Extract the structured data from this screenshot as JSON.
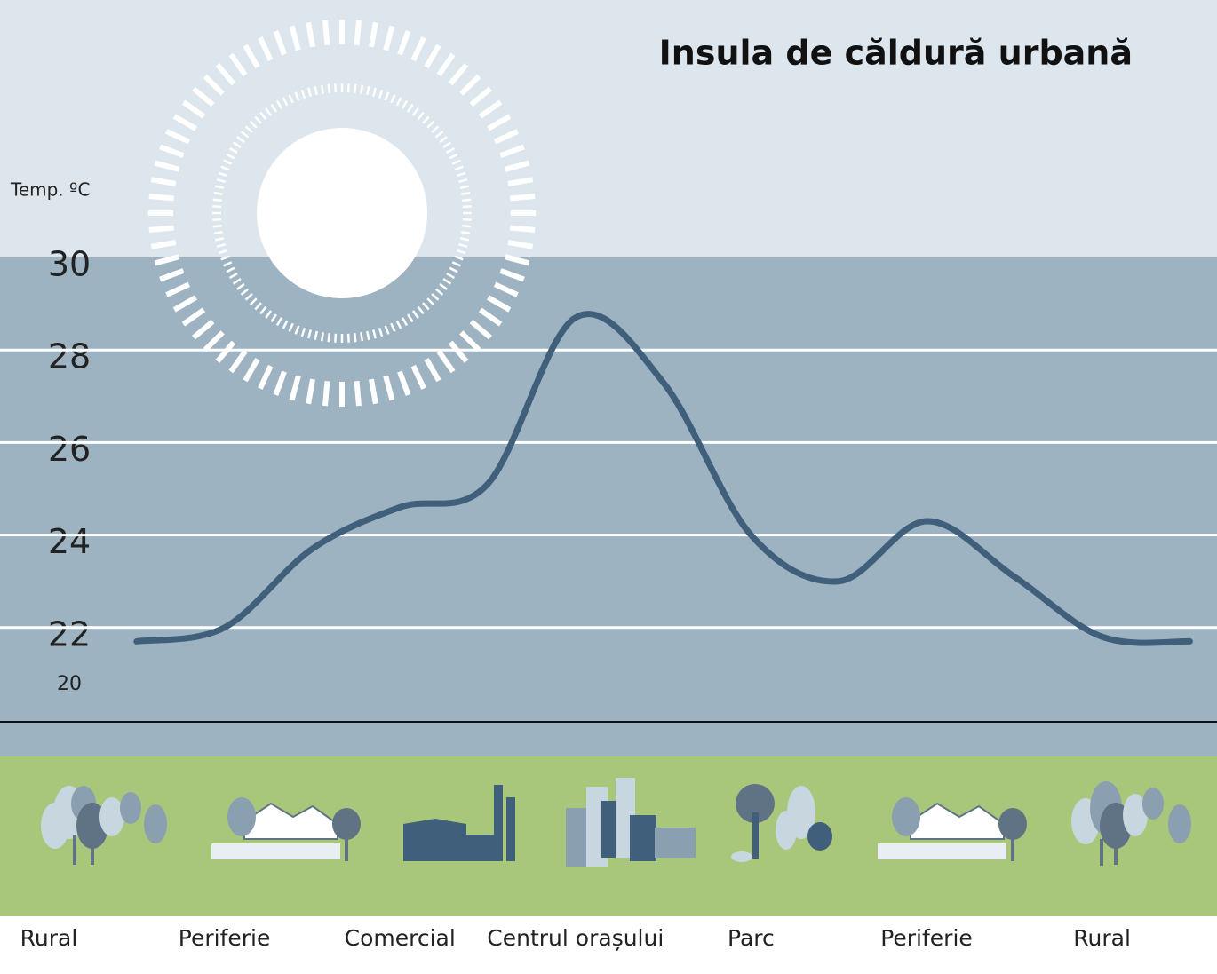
{
  "chart_data": {
    "type": "line",
    "title": "Insula de căldură urbană",
    "y_label": "Temp. ºC",
    "categories": [
      "Rural",
      null,
      "Periferie",
      null,
      "Comercial",
      null,
      "Centrul orașului",
      null,
      "Parc",
      null,
      "Periferie",
      null,
      "Rural",
      null
    ],
    "series": [
      {
        "name": null,
        "color": "#3f5f7b",
        "values": [
          null,
          21.7,
          22.0,
          23.7,
          24.6,
          25.1,
          28.7,
          27.3,
          24.0,
          23.0,
          24.3,
          23.1,
          21.8,
          21.7
        ]
      }
    ],
    "ylim": [
      20,
      30
    ],
    "yticks": [
      20,
      22,
      24,
      26,
      28,
      30
    ],
    "grid": true
  }
}
